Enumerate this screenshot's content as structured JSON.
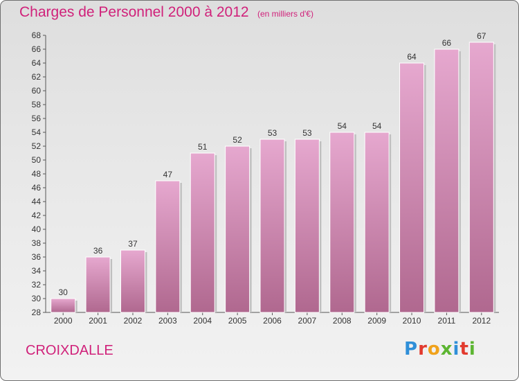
{
  "header": {
    "title": "Charges de Personnel 2000 à 2012",
    "subtitle": "(en milliers d'€)"
  },
  "footer": {
    "commune": "CROIXDALLE",
    "logo": "Proxiti"
  },
  "colors": {
    "title": "#d0217a",
    "bar_top": "#e6a8cf",
    "bar_bottom": "#b0688f",
    "axis": "#555555"
  },
  "chart_data": {
    "type": "bar",
    "title": "Charges de Personnel 2000 à 2012",
    "subtitle": "(en milliers d'€)",
    "categories": [
      "2000",
      "2001",
      "2002",
      "2003",
      "2004",
      "2005",
      "2006",
      "2007",
      "2008",
      "2009",
      "2010",
      "2011",
      "2012"
    ],
    "values": [
      30,
      36,
      37,
      47,
      51,
      52,
      53,
      53,
      54,
      54,
      64,
      66,
      67
    ],
    "ylim": [
      28,
      68
    ],
    "ytick_step": 2,
    "grid": false,
    "data_labels": true
  }
}
